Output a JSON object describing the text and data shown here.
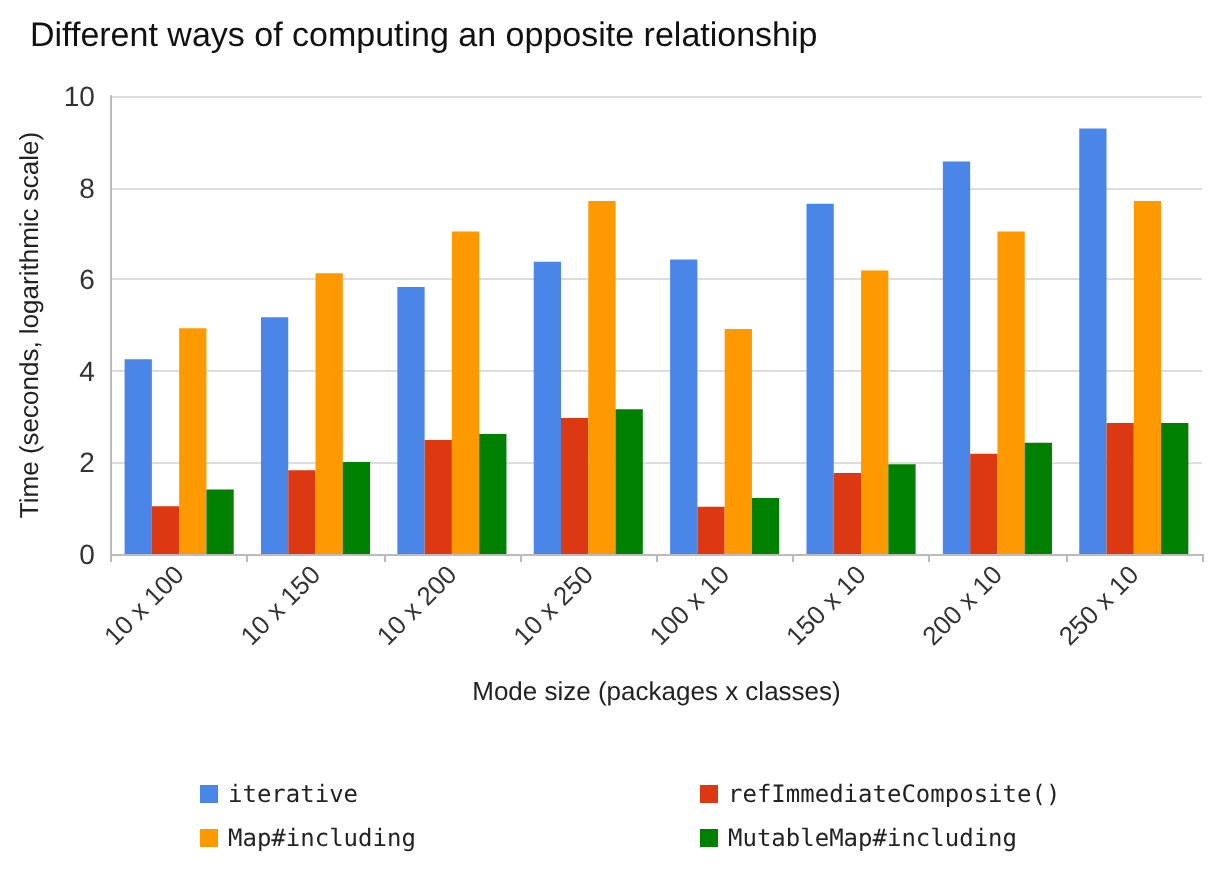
{
  "chart_data": {
    "type": "bar",
    "title": "Different ways of computing an opposite relationship",
    "xlabel": "Mode size (packages x classes)",
    "ylabel": "Time (seconds, logarithmic scale)",
    "categories": [
      "10 x 100",
      "10 x 150",
      "10 x 200",
      "10 x 250",
      "100 x 10",
      "150 x 10",
      "200 x 10",
      "250 x 10"
    ],
    "series": [
      {
        "name": "iterative",
        "color": "#4a86e8",
        "values": [
          4.25,
          5.17,
          5.83,
          6.38,
          6.43,
          7.65,
          8.57,
          9.29
        ]
      },
      {
        "name": "refImmediateComposite()",
        "color": "#dc3912",
        "values": [
          1.04,
          1.83,
          2.49,
          2.97,
          1.03,
          1.77,
          2.19,
          2.86
        ]
      },
      {
        "name": "Map#including",
        "color": "#ff9900",
        "values": [
          4.93,
          6.13,
          7.04,
          7.71,
          4.91,
          6.19,
          7.04,
          7.71
        ]
      },
      {
        "name": "MutableMap#including",
        "color": "#008000",
        "values": [
          1.41,
          2.01,
          2.62,
          3.16,
          1.22,
          1.96,
          2.43,
          2.86
        ]
      }
    ],
    "ylim": [
      0,
      10
    ],
    "yticks": [
      0,
      2,
      4,
      6,
      8,
      10
    ],
    "grid": "y",
    "legend": "bottom"
  }
}
